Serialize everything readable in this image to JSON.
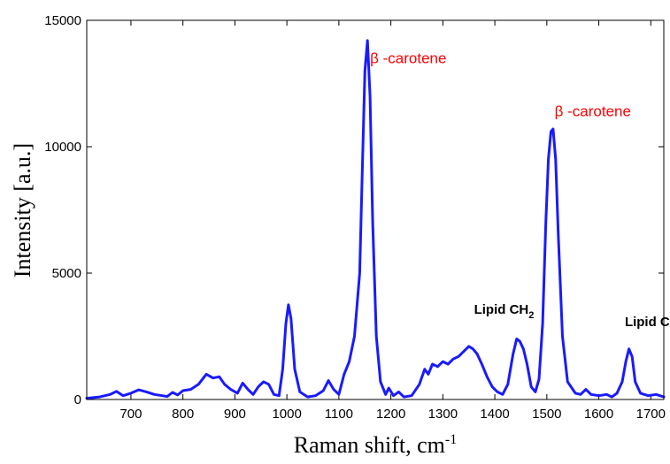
{
  "chart_data": {
    "type": "line",
    "xlabel": "Raman shift, cm",
    "xlabel_sup": "-1",
    "ylabel": "Intensity  [a.u.]",
    "xlim": [
      615,
      1725
    ],
    "ylim": [
      0,
      15000
    ],
    "xticks": [
      700,
      800,
      900,
      1000,
      1100,
      1200,
      1300,
      1400,
      1500,
      1600,
      1700
    ],
    "yticks": [
      0,
      5000,
      10000,
      15000
    ],
    "grid": false,
    "line_color": "#1a1aff",
    "series": [
      {
        "x": [
          615,
          640,
          660,
          672,
          685,
          700,
          715,
          730,
          745,
          760,
          770,
          780,
          790,
          800,
          815,
          830,
          845,
          858,
          870,
          880,
          892,
          905,
          915,
          925,
          935,
          945,
          955,
          965,
          975,
          985,
          992,
          998,
          1003,
          1008,
          1015,
          1025,
          1040,
          1055,
          1070,
          1080,
          1090,
          1100,
          1110,
          1120,
          1130,
          1140,
          1145,
          1150,
          1155,
          1160,
          1165,
          1172,
          1180,
          1190,
          1196,
          1205,
          1215,
          1225,
          1240,
          1255,
          1265,
          1272,
          1280,
          1290,
          1300,
          1310,
          1320,
          1330,
          1340,
          1350,
          1358,
          1366,
          1375,
          1385,
          1395,
          1405,
          1415,
          1425,
          1435,
          1442,
          1448,
          1455,
          1462,
          1470,
          1478,
          1485,
          1492,
          1498,
          1503,
          1508,
          1512,
          1517,
          1522,
          1530,
          1540,
          1555,
          1565,
          1575,
          1585,
          1600,
          1615,
          1625,
          1635,
          1645,
          1652,
          1658,
          1664,
          1670,
          1680,
          1695,
          1710,
          1725
        ],
        "y": [
          50,
          100,
          200,
          320,
          150,
          250,
          380,
          300,
          200,
          150,
          120,
          280,
          180,
          350,
          400,
          600,
          1000,
          850,
          900,
          600,
          400,
          250,
          650,
          400,
          200,
          500,
          700,
          600,
          200,
          150,
          1200,
          3000,
          3750,
          3200,
          1200,
          300,
          100,
          150,
          350,
          750,
          400,
          200,
          1000,
          1500,
          2500,
          5000,
          9000,
          13000,
          14200,
          12000,
          7000,
          2500,
          700,
          200,
          450,
          150,
          300,
          100,
          150,
          600,
          1200,
          1000,
          1400,
          1300,
          1500,
          1400,
          1600,
          1700,
          1900,
          2100,
          2000,
          1800,
          1400,
          900,
          500,
          300,
          200,
          600,
          1800,
          2400,
          2300,
          2000,
          1400,
          500,
          300,
          800,
          3000,
          7000,
          9500,
          10600,
          10700,
          9500,
          6500,
          2500,
          700,
          250,
          200,
          400,
          200,
          150,
          200,
          100,
          250,
          700,
          1500,
          2000,
          1700,
          700,
          250,
          150,
          200,
          100
        ]
      }
    ],
    "annotations": [
      {
        "text": "β -carotene",
        "x": 1160,
        "y": 13300,
        "color": "#ff0000",
        "style": "normal"
      },
      {
        "text": "β -carotene",
        "x": 1515,
        "y": 11200,
        "color": "#ff0000",
        "style": "normal"
      },
      {
        "text": "Lipid CH",
        "sub": "2",
        "x": 1360,
        "y": 3400,
        "color": "#000000",
        "style": "bold"
      },
      {
        "text": "Lipid C=C",
        "x": 1650,
        "y": 2900,
        "color": "#000000",
        "style": "bold"
      }
    ]
  }
}
